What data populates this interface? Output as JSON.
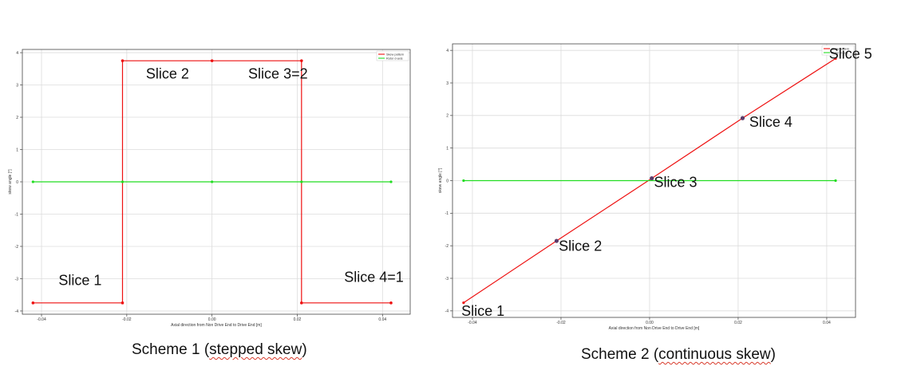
{
  "chart_data": [
    {
      "type": "line",
      "xlabel": "Axial direction from Non Drive End to Drive End [m]",
      "ylabel": "skew angle [°]",
      "xlim": [
        -0.0445,
        0.0465
      ],
      "ylim": [
        -4.1,
        4.1
      ],
      "xticks": [
        -0.04,
        -0.02,
        0.0,
        0.02,
        0.04
      ],
      "xtick_labels": [
        "-0.04",
        "-0.02",
        "0.00",
        "0.02",
        "0.04"
      ],
      "yticks": [
        -4,
        -3,
        -2,
        -1,
        0,
        1,
        2,
        3,
        4
      ],
      "ytick_labels": [
        "-4",
        "-3",
        "-2",
        "-1",
        "0",
        "1",
        "2",
        "3",
        "4"
      ],
      "grid": true,
      "legend_position": "top-right",
      "series": [
        {
          "name": "Skew pattern",
          "color": "#ee1111",
          "x": [
            -0.042,
            -0.021,
            -0.021,
            0.0,
            0.021,
            0.021,
            0.042
          ],
          "y": [
            -3.75,
            -3.75,
            3.75,
            3.75,
            3.75,
            -3.75,
            -3.75
          ],
          "markers_at": [
            0,
            1,
            2,
            3,
            4,
            5,
            6
          ]
        },
        {
          "name": "Rotor d-axis",
          "color": "#22dd22",
          "x": [
            -0.042,
            -0.021,
            0.0,
            0.021,
            0.042
          ],
          "y": [
            0,
            0,
            0,
            0,
            0
          ]
        }
      ],
      "annotations": [
        {
          "text": "Slice 1",
          "x": -0.036,
          "y": -3.2
        },
        {
          "text": "Slice 2",
          "x": -0.0155,
          "y": 3.2
        },
        {
          "text": "Slice 3=2",
          "x": 0.0085,
          "y": 3.2
        },
        {
          "text": "Slice 4=1",
          "x": 0.031,
          "y": -3.1
        }
      ]
    },
    {
      "type": "line",
      "xlabel": "Axial direction from Non Drive End to Drive End [m]",
      "ylabel": "skew angle [°]",
      "xlim": [
        -0.0445,
        0.0465
      ],
      "ylim": [
        -4.2,
        4.2
      ],
      "xticks": [
        -0.04,
        -0.02,
        0.0,
        0.02,
        0.04
      ],
      "xtick_labels": [
        "-0.04",
        "-0.02",
        "0.00",
        "0.02",
        "0.04"
      ],
      "yticks": [
        -4,
        -3,
        -2,
        -1,
        0,
        1,
        2,
        3,
        4
      ],
      "ytick_labels": [
        "-4",
        "-3",
        "-2",
        "-1",
        "0",
        "1",
        "2",
        "3",
        "4"
      ],
      "grid": true,
      "legend_position": "top-right",
      "series": [
        {
          "name": "Skew pattern",
          "color": "#ee1111",
          "x": [
            -0.042,
            -0.021,
            0.0005,
            0.021,
            0.042
          ],
          "y": [
            -3.75,
            -1.85,
            0.07,
            1.92,
            3.75
          ],
          "slice_points": [
            {
              "x": -0.021,
              "y": -1.85
            },
            {
              "x": 0.0005,
              "y": 0.07
            },
            {
              "x": 0.021,
              "y": 1.92
            }
          ]
        },
        {
          "name": "Rotor d-axis",
          "color": "#22dd22",
          "x": [
            -0.042,
            0.042
          ],
          "y": [
            0,
            0
          ]
        }
      ],
      "annotations": [
        {
          "text": "Slice 1",
          "x": -0.0425,
          "y": -4.15
        },
        {
          "text": "Slice 2",
          "x": -0.0205,
          "y": -2.15
        },
        {
          "text": "Slice 3",
          "x": 0.001,
          "y": -0.2
        },
        {
          "text": "Slice 4",
          "x": 0.0225,
          "y": 1.65
        },
        {
          "text": "Slice 5",
          "x": 0.0405,
          "y": 3.75
        }
      ]
    }
  ],
  "captions": {
    "scheme1_prefix": "Scheme 1 (",
    "scheme1_underlined": "stepped skew",
    "scheme1_suffix": ")",
    "scheme2_prefix": "Scheme 2 (",
    "scheme2_underlined": "continuous skew",
    "scheme2_suffix": ")"
  }
}
